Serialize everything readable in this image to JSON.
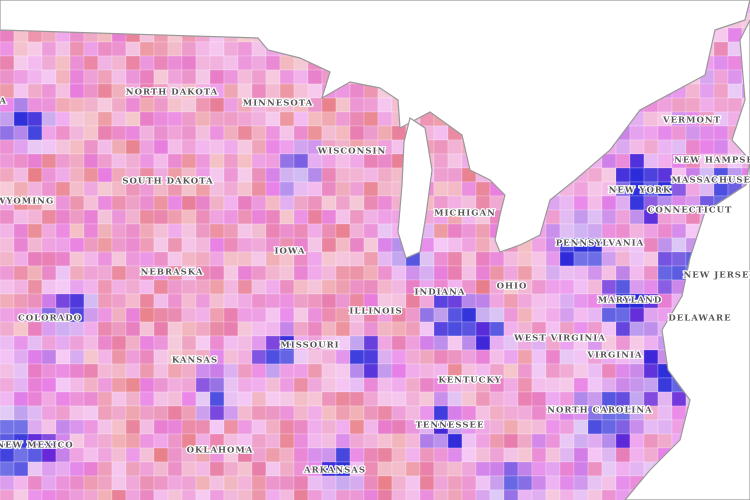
{
  "map": {
    "labels": [
      "ANA",
      "NORTH DAKOTA",
      "MINNESOTA",
      "SOUTH DAKOTA",
      "WYOMING",
      "WISCONSIN",
      "MICHIGAN",
      "IOWA",
      "NEBRASKA",
      "ILLINOIS",
      "INDIANA",
      "OHIO",
      "PENNSYLVANIA",
      "NEW YORK",
      "VERMONT",
      "NEW HAMPSHIRE",
      "MASSACHUSETTS",
      "CONNECTICUT",
      "NEW JERSEY",
      "DELAWARE",
      "MARYLAND",
      "VIRGINIA",
      "WEST VIRGINIA",
      "KENTUCKY",
      "MISSOURI",
      "KANSAS",
      "COLORADO",
      "NEW MEXICO",
      "OKLAHOMA",
      "TENNESSEE",
      "NORTH CAROLINA",
      "ARKANSAS"
    ]
  }
}
